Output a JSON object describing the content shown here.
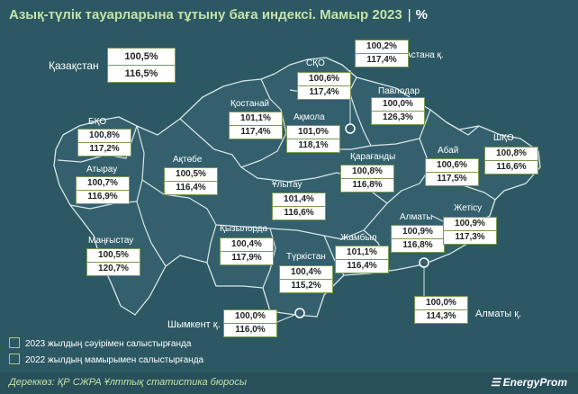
{
  "header": {
    "title": "Азық-түлік тауарларына тұтыну баға индексі. Мамыр 2023",
    "separator": "|",
    "unit": "%"
  },
  "country": {
    "label": "Қазақстан",
    "v1": "100,5%",
    "v2": "116,5%"
  },
  "regions": [
    {
      "name": "СҚО",
      "v1": "100,6%",
      "v2": "117,4%"
    },
    {
      "name": "Астана қ.",
      "v1": "100,2%",
      "v2": "117,4%"
    },
    {
      "name": "Павлодар",
      "v1": "100,0%",
      "v2": "126,3%"
    },
    {
      "name": "Қостанай",
      "v1": "101,1%",
      "v2": "117,4%"
    },
    {
      "name": "Ақмола",
      "v1": "101,0%",
      "v2": "118,1%"
    },
    {
      "name": "БҚО",
      "v1": "100,8%",
      "v2": "117,2%"
    },
    {
      "name": "ШҚО",
      "v1": "100,8%",
      "v2": "116,6%"
    },
    {
      "name": "Абай",
      "v1": "100,6%",
      "v2": "117,5%"
    },
    {
      "name": "Қарағанды",
      "v1": "100,8%",
      "v2": "116,8%"
    },
    {
      "name": "Атырау",
      "v1": "100,7%",
      "v2": "116,9%"
    },
    {
      "name": "Ақтөбе",
      "v1": "100,5%",
      "v2": "116,4%"
    },
    {
      "name": "Ұлытау",
      "v1": "101,4%",
      "v2": "116,6%"
    },
    {
      "name": "Алматы",
      "v1": "100,9%",
      "v2": "116,8%"
    },
    {
      "name": "Жетісу",
      "v1": "100,9%",
      "v2": "117,3%"
    },
    {
      "name": "Маңғыстау",
      "v1": "100,5%",
      "v2": "120,7%"
    },
    {
      "name": "Қызылорда",
      "v1": "100,4%",
      "v2": "117,9%"
    },
    {
      "name": "Жамбыл",
      "v1": "101,1%",
      "v2": "116,4%"
    },
    {
      "name": "Түркістан",
      "v1": "100,4%",
      "v2": "115,2%"
    },
    {
      "name": "Шымкент қ.",
      "v1": "100,0%",
      "v2": "116,0%"
    },
    {
      "name": "Алматы қ.",
      "v1": "100,0%",
      "v2": "114,3%"
    }
  ],
  "legend": [
    "2023 жылдың сәуірімен салыстырғанда",
    "2022 жылдың мамырымен салыстырғанда"
  ],
  "footer": {
    "source": "Дереккөз: ҚР СЖРА Ұлттық статистика бюросы",
    "brand": "EnergyProm"
  },
  "colors": {
    "background": "#2c5864",
    "map_fill": "#33606c",
    "borders": "#d9e6ea",
    "title": "#c4e3a6",
    "box_border": "#7c9a52"
  }
}
